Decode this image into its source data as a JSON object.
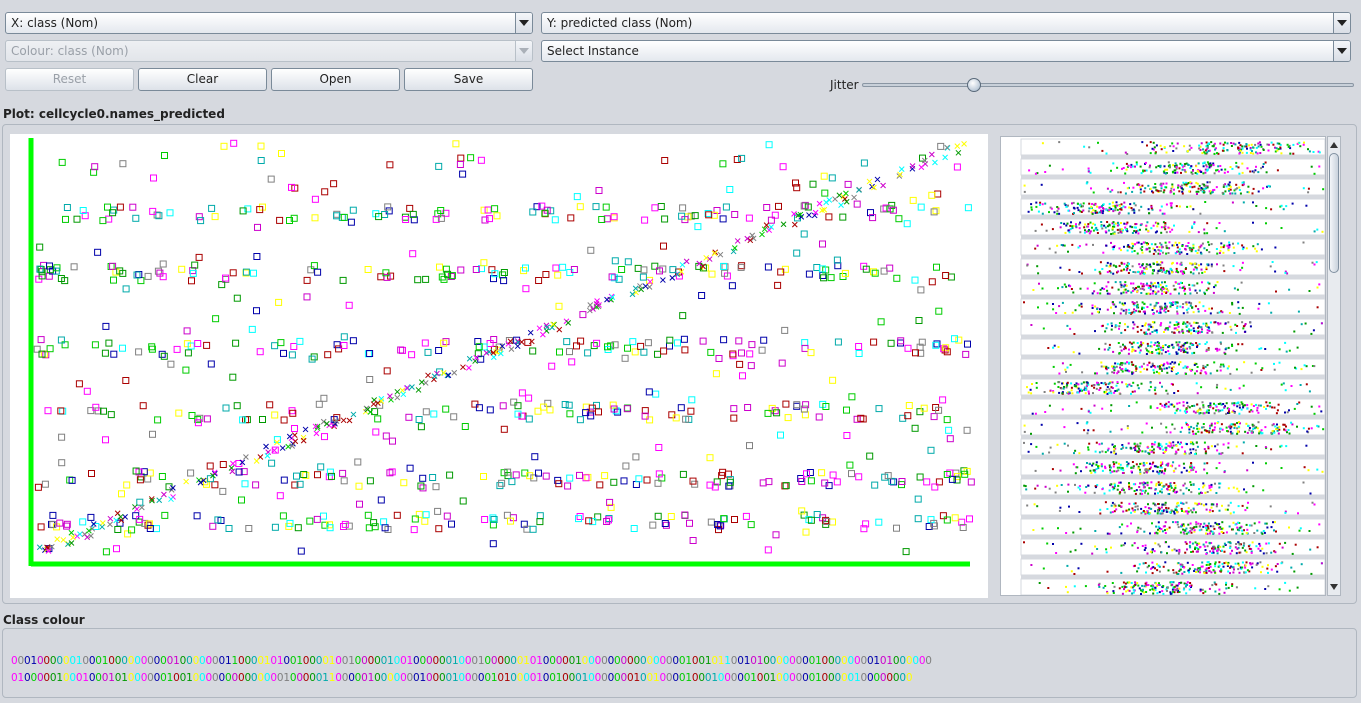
{
  "controls": {
    "x_axis": "X: class (Nom)",
    "y_axis": "Y: predicted class (Nom)",
    "colour": "Colour: class (Nom)",
    "select_instance": "Select Instance",
    "reset_label": "Reset",
    "clear_label": "Clear",
    "open_label": "Open",
    "save_label": "Save",
    "jitter_label": "Jitter",
    "jitter_value": 0.22
  },
  "plot": {
    "title": "Plot: cellcycle0.names_predicted",
    "axis_color": "#00ff00"
  },
  "legend": {
    "title": "Class colour",
    "row1": "0001000000100010000000000100000001100001010010000100100000100100000010001000000101000001000000000000000010010110010100000000100000000101000000",
    "row2": "0100000100010001010000001001000000000000001000001100000100000001000010000010100001001000100000001001000010001000001001000000100000100000000"
  },
  "palette": [
    "#ff00ff",
    "#00cc00",
    "#009900",
    "#00ffff",
    "#0000aa",
    "#aa0000",
    "#ffff00",
    "#808080",
    "#cc00cc",
    "#00aaaa"
  ],
  "icons": {
    "dropdown": "chevron-down-icon",
    "scroll_up": "arrow-up-icon",
    "scroll_down": "arrow-down-icon",
    "slider_knob": "slider-knob-icon"
  }
}
